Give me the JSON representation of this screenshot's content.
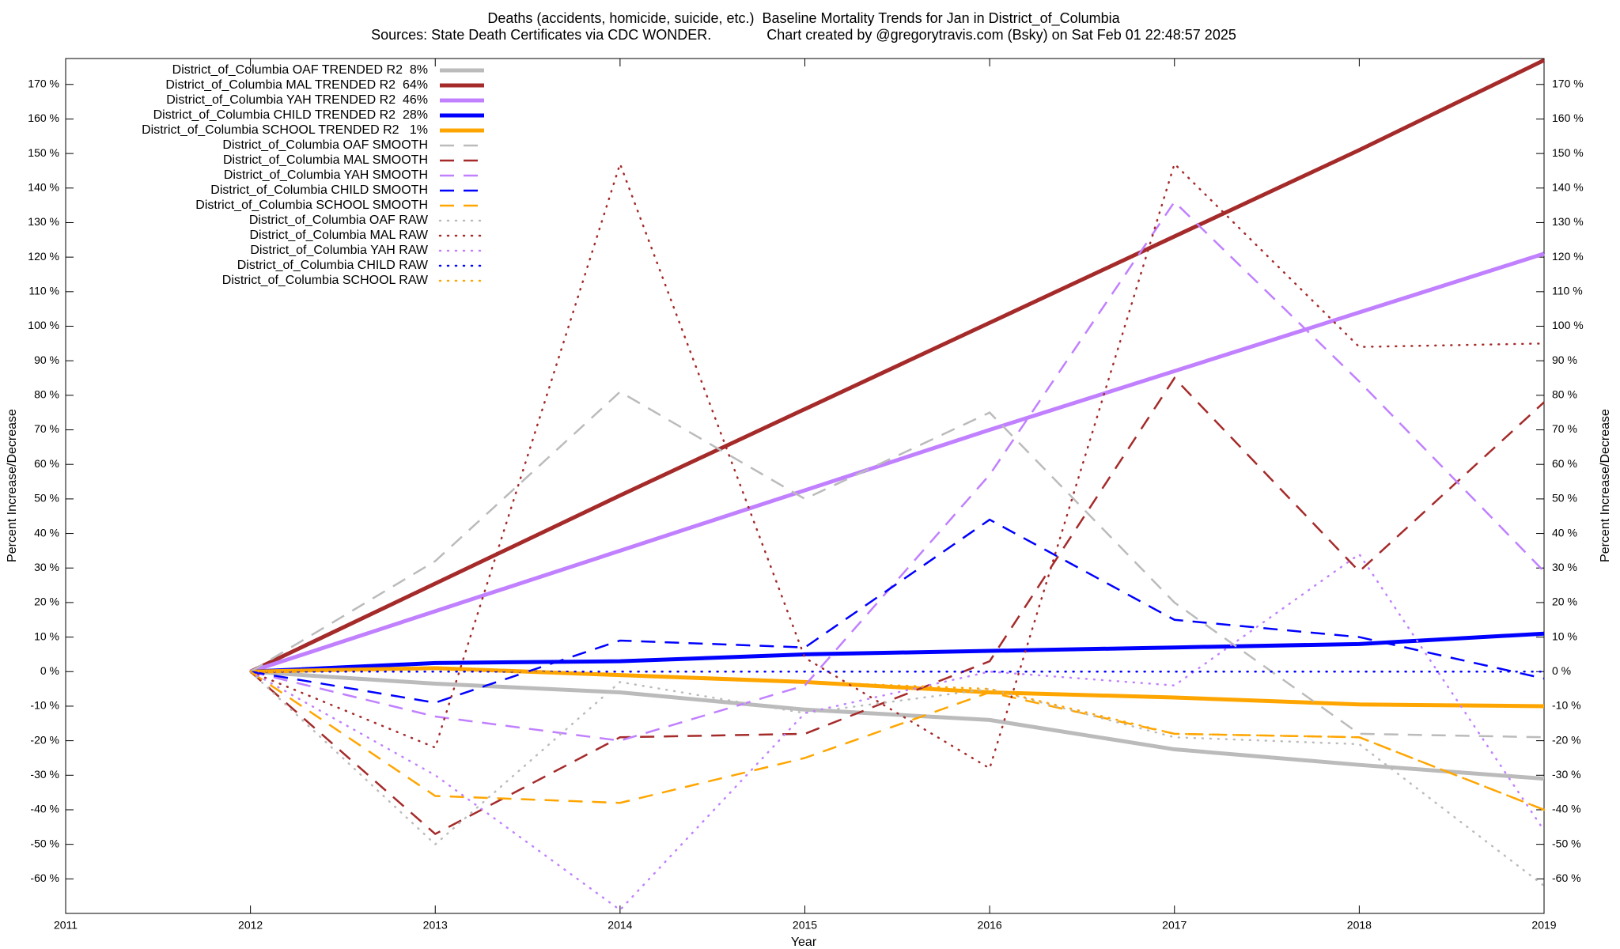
{
  "chart_data": {
    "type": "line",
    "title": "Deaths (accidents, homicide, suicide, etc.)  Baseline Mortality Trends for Jan in District_of_Columbia",
    "subtitle": "Sources: State Death Certificates via CDC WONDER.              Chart created by @gregorytravis.com (Bsky) on Sat Feb 01 22:48:57 2025",
    "xlabel": "Year",
    "ylabel": "Percent Increase/Decrease",
    "y2label": "Percent Increase/Decrease",
    "x": [
      2012,
      2013,
      2014,
      2015,
      2016,
      2017,
      2018,
      2019
    ],
    "xlim": [
      2011,
      2019
    ],
    "xticks": [
      2011,
      2012,
      2013,
      2014,
      2015,
      2016,
      2017,
      2018,
      2019
    ],
    "ylim": [
      -70,
      177.5
    ],
    "yticks": [
      {
        "value": -60,
        "label": "-60 %"
      },
      {
        "value": -50,
        "label": "-50 %"
      },
      {
        "value": -40,
        "label": "-40 %"
      },
      {
        "value": -30,
        "label": "-30 %"
      },
      {
        "value": -20,
        "label": "-20 %"
      },
      {
        "value": -10,
        "label": "-10 %"
      },
      {
        "value": 0,
        "label": "0 %"
      },
      {
        "value": 10,
        "label": "10 %"
      },
      {
        "value": 20,
        "label": "20 %"
      },
      {
        "value": 30,
        "label": "30 %"
      },
      {
        "value": 40,
        "label": "40 %"
      },
      {
        "value": 50,
        "label": "50 %"
      },
      {
        "value": 60,
        "label": "60 %"
      },
      {
        "value": 70,
        "label": "70 %"
      },
      {
        "value": 80,
        "label": "80 %"
      },
      {
        "value": 90,
        "label": "90 %"
      },
      {
        "value": 100,
        "label": "100 %"
      },
      {
        "value": 110,
        "label": "110 %"
      },
      {
        "value": 120,
        "label": "120 %"
      },
      {
        "value": 130,
        "label": "130 %"
      },
      {
        "value": 140,
        "label": "140 %"
      },
      {
        "value": 150,
        "label": "150 %"
      },
      {
        "value": 160,
        "label": "160 %"
      },
      {
        "value": 170,
        "label": "170 %"
      }
    ],
    "legend": "upper-left",
    "series": [
      {
        "name": "District_of_Columbia OAF TRENDED R2  8%",
        "color": "#bbbbbb",
        "style": "solid",
        "values": [
          0,
          -3.5,
          -6,
          -11,
          -14,
          -22.5,
          -27,
          -31
        ]
      },
      {
        "name": "District_of_Columbia MAL TRENDED R2  64%",
        "color": "#a52a2a",
        "style": "solid",
        "values": [
          0,
          25.5,
          51,
          76,
          101,
          126,
          151,
          177
        ]
      },
      {
        "name": "District_of_Columbia YAH TRENDED R2  46%",
        "color": "#c080ff",
        "style": "solid",
        "values": [
          0,
          17.5,
          35,
          52.5,
          70,
          87,
          104,
          121
        ]
      },
      {
        "name": "District_of_Columbia CHILD TRENDED R2  28%",
        "color": "#0000ff",
        "style": "solid",
        "values": [
          0,
          2.5,
          3,
          5,
          6,
          7,
          8,
          11
        ]
      },
      {
        "name": "District_of_Columbia SCHOOL TRENDED R2   1%",
        "color": "#ffa500",
        "style": "solid",
        "values": [
          0,
          1,
          -1,
          -3,
          -6,
          -7.5,
          -9.5,
          -10
        ]
      },
      {
        "name": "District_of_Columbia OAF SMOOTH",
        "color": "#bbbbbb",
        "style": "dashed",
        "values": [
          0,
          32,
          81,
          50,
          75,
          20,
          -18,
          -19
        ]
      },
      {
        "name": "District_of_Columbia MAL SMOOTH",
        "color": "#a52a2a",
        "style": "dashed",
        "values": [
          0,
          -47,
          -19,
          -18,
          3,
          85,
          29,
          78
        ]
      },
      {
        "name": "District_of_Columbia YAH SMOOTH",
        "color": "#c080ff",
        "style": "dashed",
        "values": [
          0,
          -13,
          -20,
          -4,
          57,
          136,
          84,
          29
        ]
      },
      {
        "name": "District_of_Columbia CHILD SMOOTH",
        "color": "#0000ff",
        "style": "dashed",
        "values": [
          0,
          -9,
          9,
          7,
          44,
          15,
          10,
          -2
        ]
      },
      {
        "name": "District_of_Columbia SCHOOL SMOOTH",
        "color": "#ffa500",
        "style": "dashed",
        "values": [
          0,
          -36,
          -38,
          -25,
          -6,
          -18,
          -19,
          -40
        ]
      },
      {
        "name": "District_of_Columbia OAF RAW",
        "color": "#bbbbbb",
        "style": "dotted",
        "values": [
          0,
          -50,
          -3,
          -12,
          -5,
          -19,
          -21,
          -62
        ]
      },
      {
        "name": "District_of_Columbia MAL RAW",
        "color": "#a52a2a",
        "style": "dotted",
        "values": [
          0,
          -22,
          147,
          4,
          -28,
          147,
          94,
          95
        ]
      },
      {
        "name": "District_of_Columbia YAH RAW",
        "color": "#c080ff",
        "style": "dotted",
        "values": [
          0,
          -30,
          -69,
          -12,
          0,
          -4,
          34,
          -46
        ]
      },
      {
        "name": "District_of_Columbia CHILD RAW",
        "color": "#0000ff",
        "style": "dotted",
        "values": [
          0,
          0,
          0,
          0,
          0,
          0,
          0,
          0
        ]
      },
      {
        "name": "District_of_Columbia SCHOOL RAW",
        "color": "#ffa500",
        "style": "dotted",
        "values": [
          0,
          1,
          -1,
          -3,
          -5,
          -18,
          -19,
          -40
        ]
      }
    ]
  }
}
